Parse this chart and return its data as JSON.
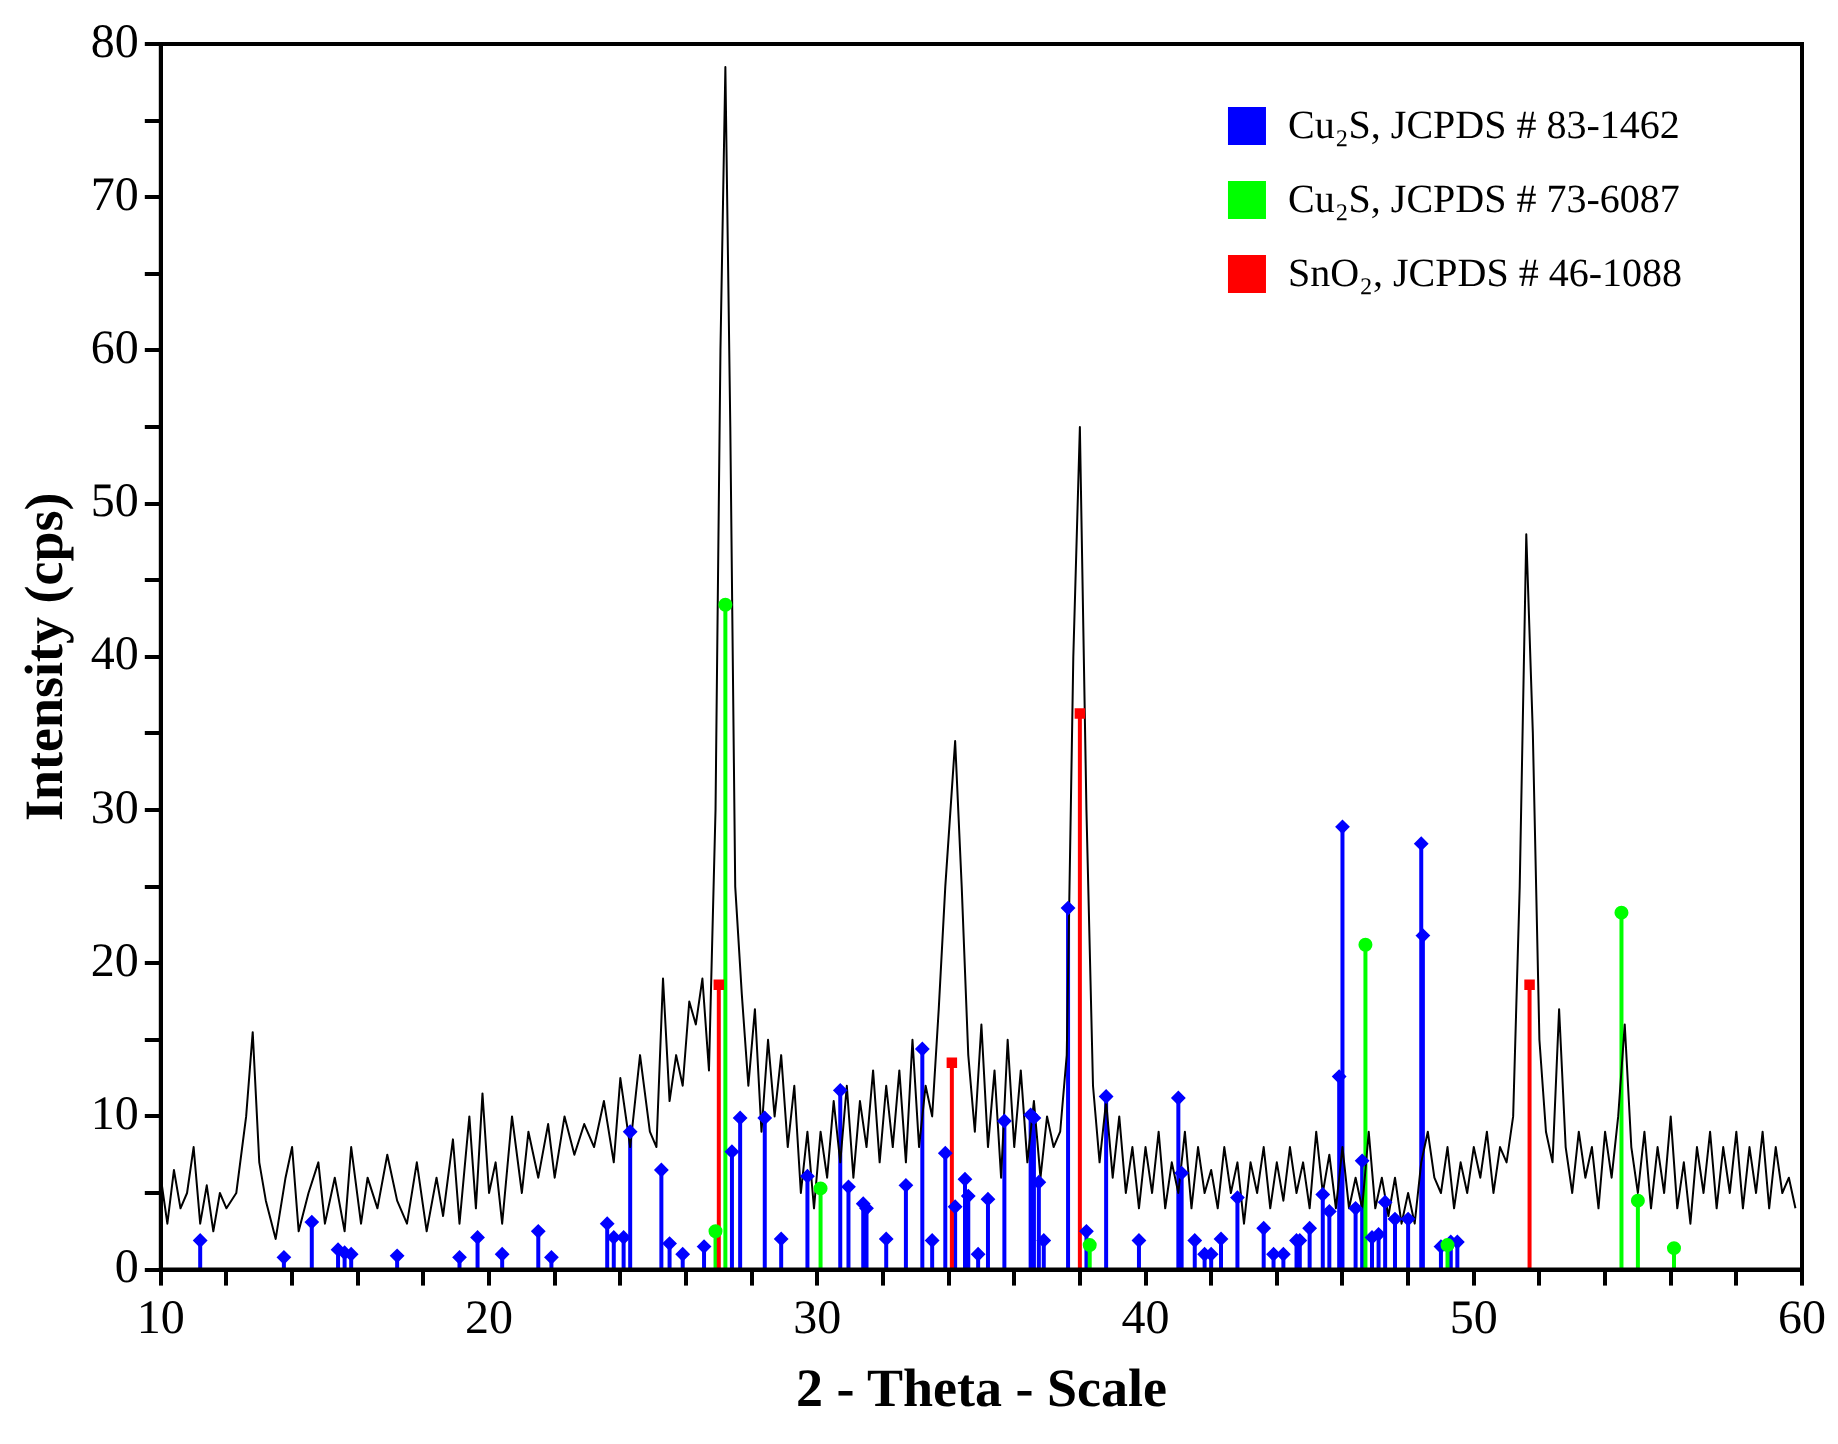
{
  "chart_data": {
    "type": "line",
    "xlabel": "2 - Theta - Scale",
    "ylabel": "Intensity (cps)",
    "xlim": [
      10,
      60
    ],
    "ylim": [
      0,
      80
    ],
    "xticks": [
      10,
      {
        "value": 12,
        "label": null
      },
      {
        "value": 14,
        "label": null
      },
      {
        "value": 16,
        "label": null
      },
      {
        "value": 18,
        "label": null
      },
      20,
      {
        "value": 22,
        "label": null
      },
      {
        "value": 24,
        "label": null
      },
      {
        "value": 26,
        "label": null
      },
      {
        "value": 28,
        "label": null
      },
      30,
      {
        "value": 32,
        "label": null
      },
      {
        "value": 34,
        "label": null
      },
      {
        "value": 36,
        "label": null
      },
      {
        "value": 38,
        "label": null
      },
      40,
      {
        "value": 42,
        "label": null
      },
      {
        "value": 44,
        "label": null
      },
      {
        "value": 46,
        "label": null
      },
      {
        "value": 48,
        "label": null
      },
      50,
      {
        "value": 52,
        "label": null
      },
      {
        "value": 54,
        "label": null
      },
      {
        "value": 56,
        "label": null
      },
      {
        "value": 58,
        "label": null
      },
      60
    ],
    "yticks": [
      0,
      {
        "value": 5,
        "label": null
      },
      10,
      {
        "value": 15,
        "label": null
      },
      20,
      {
        "value": 25,
        "label": null
      },
      30,
      {
        "value": 35,
        "label": null
      },
      40,
      {
        "value": 45,
        "label": null
      },
      50,
      {
        "value": 55,
        "label": null
      },
      60,
      {
        "value": 65,
        "label": null
      },
      70,
      {
        "value": 75,
        "label": null
      },
      80
    ],
    "grid": false,
    "legend": "top right",
    "line_style": "solid",
    "series": [
      {
        "color": "#000000",
        "marker": "none",
        "x": [
          10.0,
          10.2,
          10.4,
          10.6,
          10.8,
          11.0,
          11.2,
          11.4,
          11.6,
          11.8,
          12.0,
          12.3,
          12.6,
          12.8,
          13.0,
          13.2,
          13.5,
          13.8,
          14.0,
          14.2,
          14.5,
          14.8,
          15.0,
          15.3,
          15.6,
          15.8,
          16.1,
          16.3,
          16.6,
          16.9,
          17.2,
          17.5,
          17.8,
          18.1,
          18.4,
          18.6,
          18.9,
          19.1,
          19.4,
          19.6,
          19.8,
          20.0,
          20.2,
          20.4,
          20.7,
          21.0,
          21.2,
          21.5,
          21.8,
          22.0,
          22.3,
          22.6,
          22.9,
          23.2,
          23.5,
          23.8,
          24.0,
          24.3,
          24.6,
          24.9,
          25.1,
          25.3,
          25.5,
          25.7,
          25.9,
          26.1,
          26.3,
          26.5,
          26.7,
          26.9,
          27.05,
          27.2,
          27.35,
          27.5,
          27.7,
          27.9,
          28.1,
          28.3,
          28.5,
          28.7,
          28.9,
          29.1,
          29.3,
          29.5,
          29.7,
          29.9,
          30.1,
          30.3,
          30.5,
          30.7,
          30.9,
          31.1,
          31.3,
          31.5,
          31.7,
          31.9,
          32.1,
          32.3,
          32.5,
          32.7,
          32.9,
          33.1,
          33.3,
          33.5,
          33.7,
          33.9,
          34.2,
          34.4,
          34.6,
          34.8,
          35.0,
          35.2,
          35.4,
          35.6,
          35.8,
          36.0,
          36.2,
          36.4,
          36.6,
          36.8,
          37.0,
          37.2,
          37.4,
          37.6,
          37.8,
          38.0,
          38.2,
          38.4,
          38.6,
          38.8,
          39.0,
          39.2,
          39.4,
          39.6,
          39.8,
          40.0,
          40.2,
          40.4,
          40.6,
          40.8,
          41.0,
          41.2,
          41.4,
          41.6,
          41.8,
          42.0,
          42.2,
          42.4,
          42.6,
          42.8,
          43.0,
          43.2,
          43.4,
          43.6,
          43.8,
          44.0,
          44.2,
          44.4,
          44.6,
          44.8,
          45.0,
          45.2,
          45.4,
          45.6,
          45.8,
          46.0,
          46.2,
          46.4,
          46.6,
          46.8,
          47.0,
          47.2,
          47.4,
          47.6,
          47.8,
          48.0,
          48.2,
          48.4,
          48.6,
          48.8,
          49.0,
          49.2,
          49.4,
          49.6,
          49.8,
          50.0,
          50.2,
          50.4,
          50.6,
          50.8,
          51.0,
          51.2,
          51.4,
          51.6,
          51.8,
          52.0,
          52.2,
          52.4,
          52.6,
          52.8,
          53.0,
          53.2,
          53.4,
          53.6,
          53.8,
          54.0,
          54.2,
          54.4,
          54.6,
          54.8,
          55.0,
          55.2,
          55.4,
          55.6,
          55.8,
          56.0,
          56.2,
          56.4,
          56.6,
          56.8,
          57.0,
          57.2,
          57.4,
          57.6,
          57.8,
          58.0,
          58.2,
          58.4,
          58.6,
          58.8,
          59.0,
          59.2,
          59.4,
          59.6,
          59.8
        ],
        "values": [
          6,
          3,
          6.5,
          4,
          5,
          8,
          3,
          5.5,
          2.5,
          5,
          4,
          5,
          10,
          15.5,
          7,
          4.5,
          2,
          6,
          8,
          2.5,
          5,
          7,
          3,
          6,
          2.5,
          8,
          3,
          6,
          4,
          7.5,
          4.5,
          3,
          7,
          2.5,
          6,
          3.5,
          8.5,
          3,
          10,
          4,
          11.5,
          5,
          7,
          3,
          10,
          5,
          9,
          6,
          9.5,
          6,
          10,
          7.5,
          9.5,
          8,
          11,
          7,
          12.5,
          8,
          14,
          9,
          8,
          19,
          11,
          14,
          12,
          17.5,
          16,
          19,
          13,
          30,
          60,
          78.5,
          55,
          25,
          18,
          12,
          17,
          9,
          15,
          10,
          14,
          8,
          12,
          5,
          9,
          4,
          9,
          6,
          11,
          7,
          12,
          6,
          11,
          8,
          13,
          7,
          12,
          8,
          13,
          7,
          15,
          8,
          12,
          10,
          17,
          25,
          34.5,
          25,
          14,
          9,
          16,
          8,
          13,
          6,
          15,
          8,
          13,
          7,
          11,
          6,
          10,
          8,
          9,
          14,
          40,
          55,
          30,
          12,
          7,
          11,
          6,
          10,
          5,
          8,
          4,
          8,
          5,
          9,
          4,
          7,
          5,
          9,
          4,
          8,
          5,
          6.5,
          4,
          8,
          5,
          7,
          3,
          7,
          5,
          8,
          4,
          7,
          4.5,
          8,
          5,
          7,
          4,
          9,
          5,
          7.5,
          4,
          8,
          4,
          6,
          4,
          9,
          4,
          6,
          3.5,
          6,
          3,
          5,
          3,
          7,
          9,
          6,
          5,
          8,
          4,
          7,
          5,
          8,
          6,
          9,
          5,
          8,
          7,
          10,
          25,
          48,
          35,
          15,
          9,
          7,
          17,
          8,
          5,
          9,
          6,
          8,
          4,
          9,
          6,
          10,
          16,
          8,
          5,
          9,
          4,
          8,
          5,
          10,
          4,
          7,
          3,
          8,
          5,
          9,
          4,
          8,
          5,
          9,
          4,
          8,
          5,
          9,
          4,
          8,
          5,
          6,
          4
        ]
      },
      {
        "type": "lollipop",
        "name": "Cu₂S, JCPDS # 83-1462",
        "color": "#0000ff",
        "marker": "diamond",
        "x": [
          11.2,
          13.75,
          14.6,
          15.4,
          15.6,
          15.8,
          17.2,
          19.1,
          19.65,
          20.4,
          21.5,
          21.9,
          23.6,
          23.8,
          24.1,
          24.3,
          25.25,
          25.5,
          25.9,
          26.55,
          27.4,
          27.65,
          28.4,
          28.9,
          29.7,
          30.7,
          30.95,
          31.4,
          31.5,
          32.1,
          32.7,
          33.2,
          33.5,
          33.9,
          34.2,
          34.5,
          34.6,
          34.9,
          35.2,
          35.7,
          36.5,
          36.6,
          36.75,
          36.9,
          37.64,
          38.2,
          38.8,
          39.8,
          41.0,
          41.1,
          41.5,
          41.8,
          42.0,
          42.3,
          42.8,
          43.6,
          43.9,
          44.2,
          44.6,
          44.7,
          45.0,
          45.4,
          45.6,
          45.9,
          46.0,
          46.4,
          46.6,
          46.9,
          47.1,
          47.3,
          47.6,
          48.0,
          48.4,
          48.45,
          49.0,
          49.3,
          49.5
        ],
        "values": [
          1.9,
          0.8,
          3.1,
          1.3,
          1.1,
          1.0,
          0.9,
          0.8,
          2.1,
          1.0,
          2.5,
          0.8,
          3.0,
          2.1,
          2.1,
          9.0,
          6.5,
          1.7,
          1.0,
          1.5,
          7.7,
          9.9,
          9.9,
          2.0,
          6.1,
          11.7,
          5.4,
          4.3,
          4.0,
          2.0,
          5.5,
          14.4,
          1.9,
          7.6,
          4.1,
          5.9,
          4.8,
          1.0,
          4.6,
          9.7,
          10.1,
          9.9,
          5.7,
          1.9,
          23.6,
          2.5,
          11.3,
          1.9,
          11.2,
          6.3,
          1.9,
          1.0,
          1.0,
          2.0,
          4.7,
          2.7,
          1.0,
          1.0,
          1.9,
          1.9,
          2.7,
          4.9,
          3.8,
          12.6,
          28.9,
          4.0,
          7.1,
          2.1,
          2.3,
          4.4,
          3.3,
          3.3,
          27.8,
          21.8,
          1.5,
          1.8,
          1.8
        ]
      },
      {
        "type": "lollipop",
        "name": "Cu₂S, JCPDS # 73-6087",
        "color": "#00ff00",
        "marker": "circle",
        "x": [
          26.9,
          27.2,
          30.1,
          38.3,
          46.7,
          49.2,
          54.5,
          55.0,
          56.1
        ],
        "values": [
          2.5,
          43.4,
          5.3,
          1.6,
          21.2,
          1.6,
          23.3,
          4.5,
          1.4
        ]
      },
      {
        "type": "lollipop",
        "name": "SnO₂, JCPDS # 46-1088",
        "color": "#ff0000",
        "marker": "square",
        "x": [
          27.0,
          34.1,
          38.0,
          51.7
        ],
        "values": [
          18.6,
          13.5,
          36.3,
          18.6
        ]
      }
    ]
  }
}
